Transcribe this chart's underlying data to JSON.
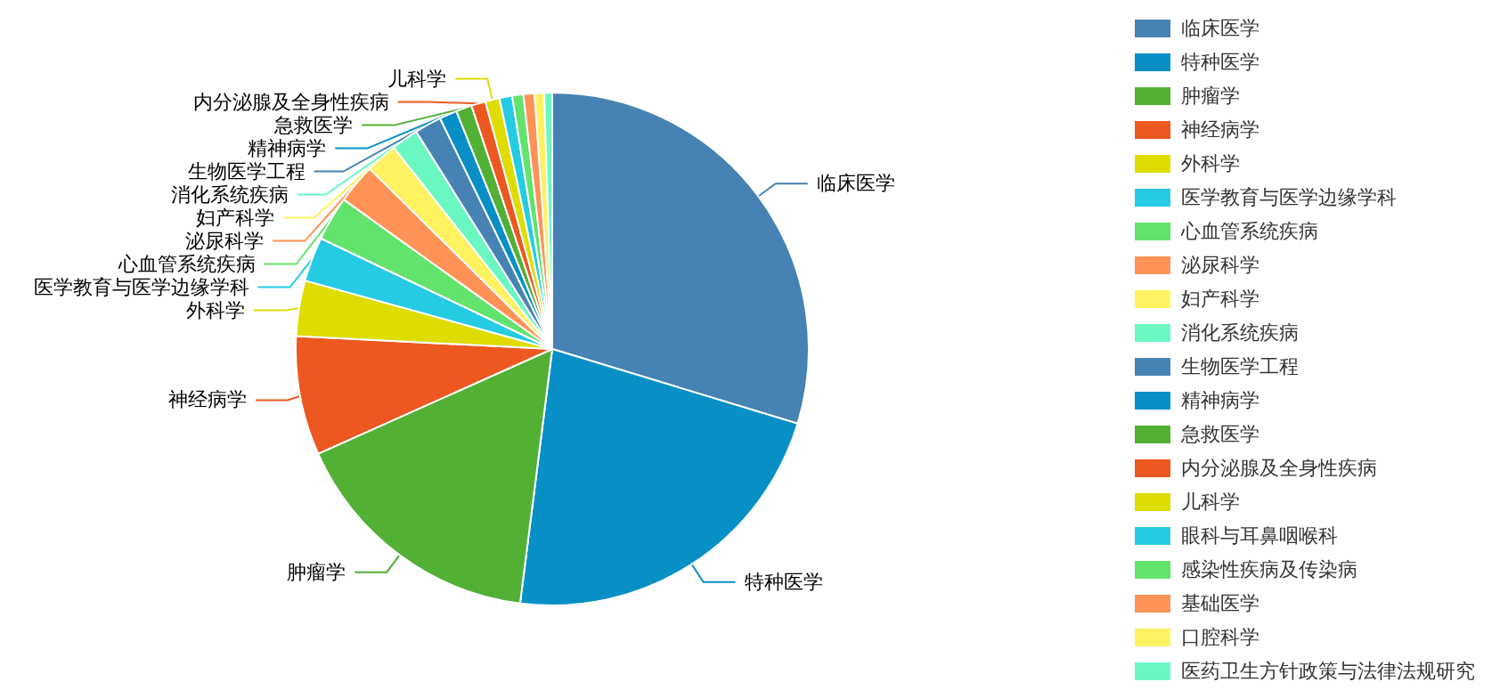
{
  "chart_data": {
    "type": "pie",
    "categories": [
      "临床医学",
      "特种医学",
      "肿瘤学",
      "神经病学",
      "外科学",
      "医学教育与医学边缘学科",
      "心血管系统疾病",
      "泌尿科学",
      "妇产科学",
      "消化系统疾病",
      "生物医学工程",
      "精神病学",
      "急救医学",
      "内分泌腺及全身性疾病",
      "儿科学",
      "眼科与耳鼻咽喉科",
      "感染性疾病及传染病",
      "基础医学",
      "口腔科学",
      "医药卫生方针政策与法律法规研究"
    ],
    "values": [
      29.7,
      22.3,
      16.3,
      7.5,
      3.5,
      2.8,
      2.8,
      2.5,
      2.0,
      1.7,
      1.7,
      1.1,
      1.0,
      0.9,
      0.9,
      0.8,
      0.7,
      0.7,
      0.6,
      0.5
    ],
    "colors": [
      "#4682b4",
      "#078fc6",
      "#52b035",
      "#ed5720",
      "#dedc00",
      "#24cbe3",
      "#62e36c",
      "#ff9257",
      "#fff261",
      "#6bf7c2",
      "#4682b4",
      "#078fc6",
      "#52b035",
      "#ed5720",
      "#dedc00",
      "#24cbe3",
      "#62e36c",
      "#ff9257",
      "#fff261",
      "#6bf7c2"
    ],
    "legend": "right"
  }
}
